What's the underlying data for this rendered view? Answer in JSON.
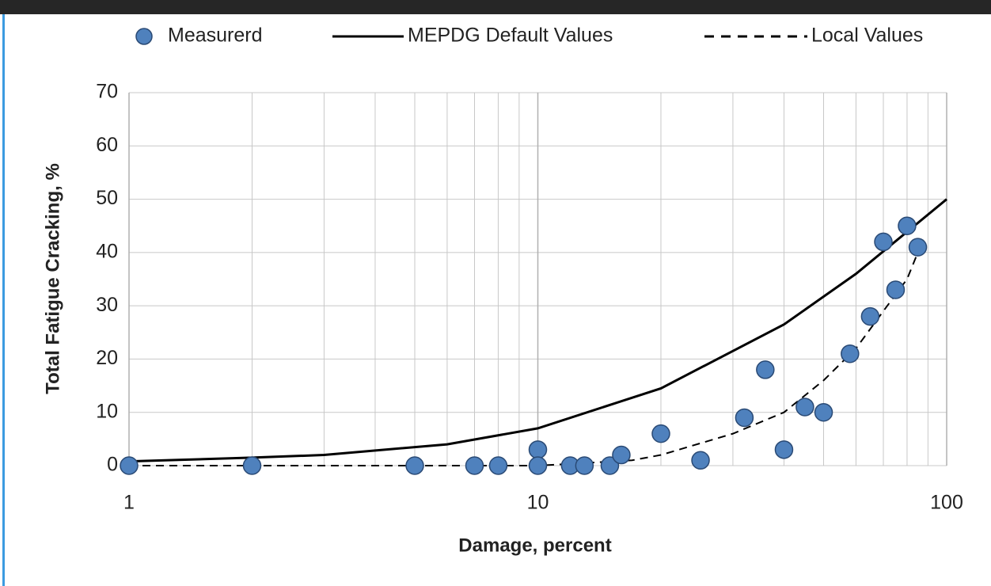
{
  "chart_data": {
    "type": "scatter",
    "x_label": "Damage, percent",
    "y_label": "Total Fatigue Cracking, %",
    "xscale": "log",
    "xlim": [
      1,
      100
    ],
    "xticks": [
      1,
      10,
      100
    ],
    "ylim": [
      0,
      70
    ],
    "yticks": [
      0,
      10,
      20,
      30,
      40,
      50,
      60,
      70
    ],
    "grid": true,
    "legend": "top",
    "series": [
      {
        "name": "Measurerd",
        "style": "marker",
        "color": "#4f81bd",
        "x": [
          1,
          2,
          5,
          7,
          8,
          10,
          10,
          12,
          13,
          15,
          16,
          20,
          25,
          32,
          36,
          40,
          45,
          50,
          58,
          65,
          70,
          75,
          80,
          85
        ],
        "values": [
          0,
          0,
          0,
          0,
          0,
          3,
          0,
          0,
          0,
          0,
          2,
          6,
          1,
          9,
          18,
          3,
          11,
          10,
          21,
          28,
          42,
          33,
          45,
          41
        ]
      },
      {
        "name": "MEPDG Default Values",
        "style": "solid",
        "color": "#000000",
        "x": [
          1,
          2,
          3,
          6,
          10,
          20,
          40,
          60,
          100
        ],
        "values": [
          0.8,
          1.5,
          2,
          4,
          7,
          14.5,
          26.5,
          36,
          50
        ]
      },
      {
        "name": "Local Values",
        "style": "dashed",
        "color": "#000000",
        "x": [
          1,
          6,
          10,
          17,
          20,
          30,
          40,
          50,
          60,
          70,
          80,
          85
        ],
        "values": [
          0,
          0,
          0,
          1,
          2,
          6,
          10,
          16,
          22,
          29,
          35,
          40
        ]
      }
    ]
  }
}
